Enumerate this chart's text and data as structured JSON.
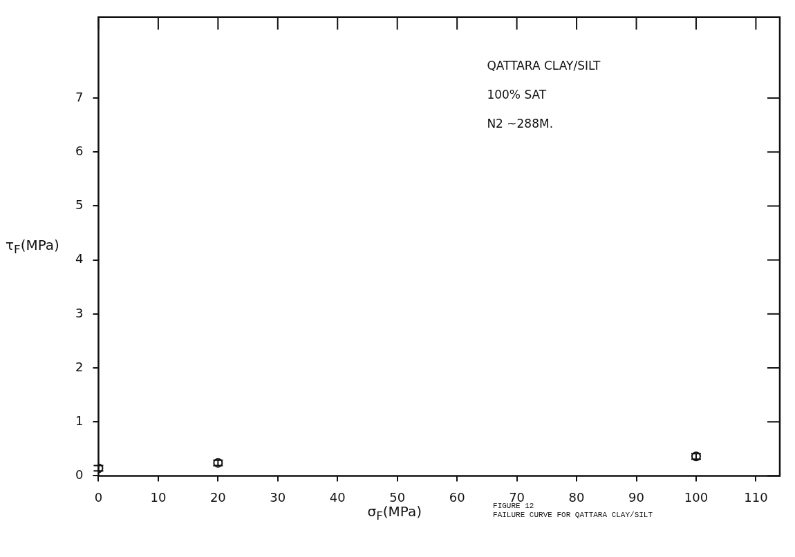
{
  "chart_data": {
    "type": "scatter",
    "xlabel": "σ$_{F}$(MPa)",
    "ylabel": "τ$_{F}$(MPa)",
    "x": [
      0,
      20,
      100
    ],
    "values": [
      0.14,
      0.24,
      0.36
    ],
    "errors": [
      0.05,
      0.05,
      0.05
    ],
    "color": "#111111",
    "marker": "circle",
    "xlim": [
      0,
      114
    ],
    "xticks": [
      0,
      10,
      20,
      30,
      40,
      50,
      60,
      70,
      80,
      90,
      100,
      110
    ],
    "ylim": [
      0,
      8.5
    ],
    "yticks": [
      0,
      1,
      2,
      3,
      4,
      5,
      6,
      7
    ],
    "grid": false,
    "legend": false,
    "annotations": [
      "QATTARA  CLAY/SILT",
      "100% SAT",
      "N2  ~288M.",
      "FIGURE 12",
      "FAILURE CURVE FOR QATTARA CLAY/SILT"
    ]
  }
}
